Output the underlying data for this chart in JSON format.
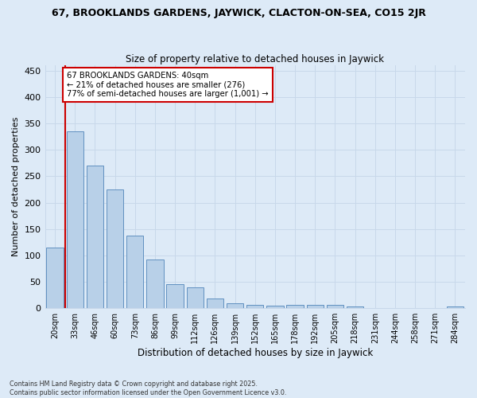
{
  "title": "67, BROOKLANDS GARDENS, JAYWICK, CLACTON-ON-SEA, CO15 2JR",
  "subtitle": "Size of property relative to detached houses in Jaywick",
  "xlabel": "Distribution of detached houses by size in Jaywick",
  "ylabel": "Number of detached properties",
  "categories": [
    "20sqm",
    "33sqm",
    "46sqm",
    "60sqm",
    "73sqm",
    "86sqm",
    "99sqm",
    "112sqm",
    "126sqm",
    "139sqm",
    "152sqm",
    "165sqm",
    "178sqm",
    "192sqm",
    "205sqm",
    "218sqm",
    "231sqm",
    "244sqm",
    "258sqm",
    "271sqm",
    "284sqm"
  ],
  "values": [
    115,
    335,
    270,
    225,
    138,
    93,
    45,
    40,
    18,
    10,
    6,
    5,
    6,
    6,
    7,
    3,
    0,
    0,
    0,
    0,
    4
  ],
  "bar_color": "#b8d0e8",
  "bar_edge_color": "#6090c0",
  "grid_color": "#c8d8ea",
  "bg_color": "#ddeaf7",
  "property_line_x": 0.5,
  "annotation_text": "67 BROOKLANDS GARDENS: 40sqm\n← 21% of detached houses are smaller (276)\n77% of semi-detached houses are larger (1,001) →",
  "annotation_box_color": "#ffffff",
  "annotation_box_edge": "#cc0000",
  "property_line_color": "#cc0000",
  "footnote": "Contains HM Land Registry data © Crown copyright and database right 2025.\nContains public sector information licensed under the Open Government Licence v3.0.",
  "ylim": [
    0,
    460
  ],
  "yticks": [
    0,
    50,
    100,
    150,
    200,
    250,
    300,
    350,
    400,
    450
  ],
  "title_fontsize": 9,
  "subtitle_fontsize": 8.5
}
